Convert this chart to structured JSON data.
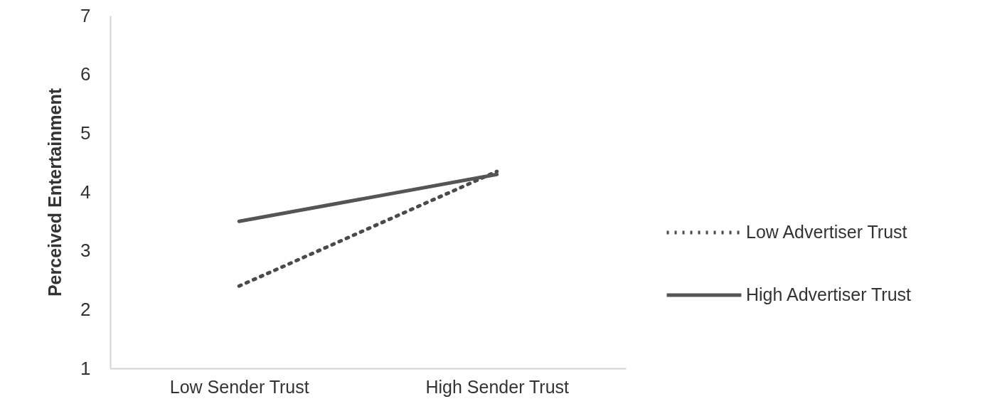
{
  "chart_data": {
    "type": "line",
    "ylabel": "Perceived Entertainment",
    "categories": [
      "Low Sender Trust",
      "High Sender Trust"
    ],
    "series": [
      {
        "name": "Low Advertiser Trust",
        "color": "#4a4a4a",
        "line_style": "dotted",
        "values": [
          2.4,
          4.35
        ]
      },
      {
        "name": "High Advertiser Trust",
        "color": "#555555",
        "line_style": "solid",
        "values": [
          3.5,
          4.3
        ]
      }
    ],
    "ylim": [
      1,
      7
    ],
    "yticks": [
      1,
      2,
      3,
      4,
      5,
      6,
      7
    ],
    "grid": false,
    "legend": "right",
    "marker": "none"
  }
}
